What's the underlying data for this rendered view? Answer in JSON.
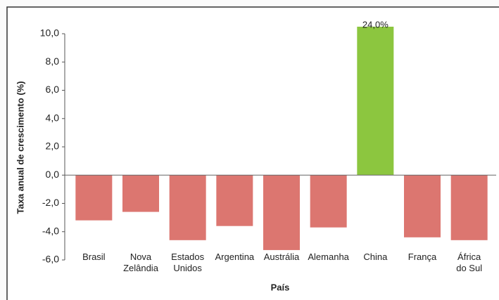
{
  "chart_data": {
    "type": "bar",
    "y_label": "Taxa anual de crescimento (%)",
    "x_label": "País",
    "categories": [
      "Brasil",
      "Nova\nZelândia",
      "Estados\nUnidos",
      "Argentina",
      "Austrália",
      "Alemanha",
      "China",
      "França",
      "África\ndo Sul"
    ],
    "values": [
      -3.2,
      -2.6,
      -4.6,
      -3.6,
      -5.3,
      -3.7,
      24.0,
      -4.4,
      -4.6
    ],
    "value_labels": [
      null,
      null,
      null,
      null,
      null,
      null,
      "24,0%",
      null,
      null
    ],
    "colors": [
      "#dc7670",
      "#dc7670",
      "#dc7670",
      "#dc7670",
      "#dc7670",
      "#dc7670",
      "#8cc63f",
      "#dc7670",
      "#dc7670"
    ],
    "ylim": [
      -6,
      10
    ],
    "yticks": [
      {
        "value": -6,
        "label": "-6,0"
      },
      {
        "value": -4,
        "label": "-4,0"
      },
      {
        "value": -2,
        "label": "-2,0"
      },
      {
        "value": 0,
        "label": "0,0"
      },
      {
        "value": 2,
        "label": "2,0"
      },
      {
        "value": 4,
        "label": "4,0"
      },
      {
        "value": 6,
        "label": "6,0"
      },
      {
        "value": 8,
        "label": "8,0"
      },
      {
        "value": 10,
        "label": "10,0"
      }
    ],
    "grid": false
  }
}
